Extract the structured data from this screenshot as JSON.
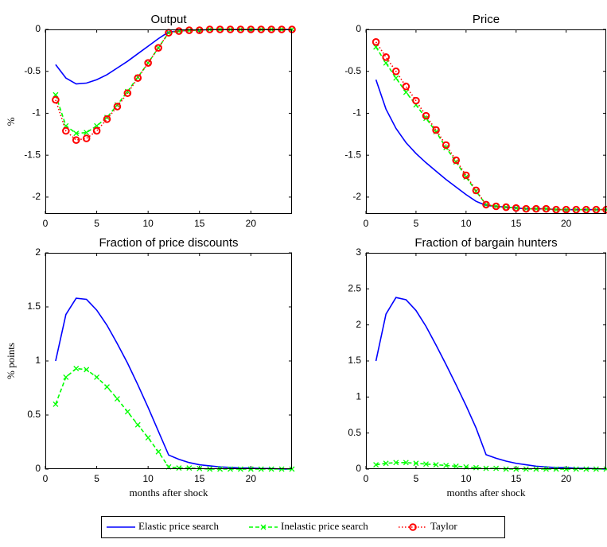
{
  "chart_data": [
    {
      "type": "line",
      "title": "Output",
      "ylabel": "%",
      "x": [
        1,
        2,
        3,
        4,
        5,
        6,
        7,
        8,
        9,
        10,
        11,
        12,
        13,
        14,
        15,
        16,
        17,
        18,
        19,
        20,
        21,
        22,
        23,
        24
      ],
      "xlim": [
        0,
        24
      ],
      "xticks": [
        0,
        5,
        10,
        15,
        20
      ],
      "ylim": [
        -2.2,
        0
      ],
      "yticks": [
        -2,
        -1.5,
        -1,
        -0.5,
        0
      ],
      "series": [
        {
          "name": "Elastic price search",
          "color": "#0000ff",
          "style": "solid",
          "marker": "none",
          "values": [
            -0.42,
            -0.58,
            -0.65,
            -0.64,
            -0.6,
            -0.54,
            -0.46,
            -0.38,
            -0.29,
            -0.2,
            -0.11,
            -0.03,
            -0.02,
            -0.01,
            -0.01,
            0,
            0,
            0,
            0,
            0,
            0,
            0,
            0,
            0
          ]
        },
        {
          "name": "Inelastic price search",
          "color": "#00ff00",
          "style": "dashed",
          "marker": "x",
          "values": [
            -0.78,
            -1.15,
            -1.24,
            -1.23,
            -1.15,
            -1.05,
            -0.9,
            -0.74,
            -0.57,
            -0.4,
            -0.22,
            -0.04,
            -0.02,
            -0.01,
            -0.01,
            0,
            0,
            0,
            0,
            0,
            0,
            0,
            0,
            0
          ]
        },
        {
          "name": "Taylor",
          "color": "#ff0000",
          "style": "dotted",
          "marker": "o",
          "values": [
            -0.84,
            -1.21,
            -1.32,
            -1.3,
            -1.21,
            -1.07,
            -0.92,
            -0.76,
            -0.58,
            -0.4,
            -0.22,
            -0.04,
            -0.02,
            -0.01,
            -0.01,
            0,
            0,
            0,
            0,
            0,
            0,
            0,
            0,
            0
          ]
        }
      ]
    },
    {
      "type": "line",
      "title": "Price",
      "x": [
        1,
        2,
        3,
        4,
        5,
        6,
        7,
        8,
        9,
        10,
        11,
        12,
        13,
        14,
        15,
        16,
        17,
        18,
        19,
        20,
        21,
        22,
        23,
        24
      ],
      "xlim": [
        0,
        24
      ],
      "xticks": [
        0,
        5,
        10,
        15,
        20
      ],
      "ylim": [
        -2.2,
        0
      ],
      "yticks": [
        -2,
        -1.5,
        -1,
        -0.5,
        0
      ],
      "series": [
        {
          "color": "#0000ff",
          "style": "solid",
          "marker": "none",
          "values": [
            -0.6,
            -0.95,
            -1.18,
            -1.35,
            -1.48,
            -1.59,
            -1.69,
            -1.79,
            -1.88,
            -1.97,
            -2.05,
            -2.1,
            -2.11,
            -2.12,
            -2.13,
            -2.14,
            -2.14,
            -2.14,
            -2.15,
            -2.15,
            -2.15,
            -2.15,
            -2.15,
            -2.15
          ]
        },
        {
          "color": "#00ff00",
          "style": "dashed",
          "marker": "x",
          "values": [
            -0.21,
            -0.4,
            -0.58,
            -0.75,
            -0.9,
            -1.06,
            -1.22,
            -1.41,
            -1.58,
            -1.76,
            -1.93,
            -2.09,
            -2.11,
            -2.12,
            -2.13,
            -2.14,
            -2.14,
            -2.14,
            -2.15,
            -2.15,
            -2.15,
            -2.15,
            -2.15,
            -2.15
          ]
        },
        {
          "color": "#ff0000",
          "style": "dotted",
          "marker": "o",
          "values": [
            -0.15,
            -0.33,
            -0.5,
            -0.68,
            -0.85,
            -1.03,
            -1.2,
            -1.38,
            -1.56,
            -1.74,
            -1.92,
            -2.09,
            -2.11,
            -2.12,
            -2.13,
            -2.14,
            -2.14,
            -2.14,
            -2.15,
            -2.15,
            -2.15,
            -2.15,
            -2.15,
            -2.15
          ]
        }
      ]
    },
    {
      "type": "line",
      "title": "Fraction of price discounts",
      "ylabel": "% points",
      "xlabel": "months after shock",
      "x": [
        1,
        2,
        3,
        4,
        5,
        6,
        7,
        8,
        9,
        10,
        11,
        12,
        13,
        14,
        15,
        16,
        17,
        18,
        19,
        20,
        21,
        22,
        23,
        24
      ],
      "xlim": [
        0,
        24
      ],
      "xticks": [
        0,
        5,
        10,
        15,
        20
      ],
      "ylim": [
        0,
        2
      ],
      "yticks": [
        0,
        0.5,
        1,
        1.5,
        2
      ],
      "series": [
        {
          "color": "#0000ff",
          "style": "solid",
          "marker": "none",
          "values": [
            1.0,
            1.43,
            1.58,
            1.57,
            1.47,
            1.33,
            1.16,
            0.98,
            0.78,
            0.57,
            0.35,
            0.13,
            0.09,
            0.06,
            0.04,
            0.03,
            0.02,
            0.015,
            0.01,
            0.01,
            0.005,
            0.005,
            0,
            0
          ]
        },
        {
          "color": "#00ff00",
          "style": "dashed",
          "marker": "x",
          "values": [
            0.6,
            0.85,
            0.93,
            0.92,
            0.85,
            0.76,
            0.65,
            0.53,
            0.41,
            0.29,
            0.16,
            0.02,
            0.01,
            0.01,
            0.005,
            0,
            0,
            0,
            0,
            0,
            0,
            0,
            0,
            0
          ]
        }
      ]
    },
    {
      "type": "line",
      "title": "Fraction of bargain hunters",
      "xlabel": "months after shock",
      "x": [
        1,
        2,
        3,
        4,
        5,
        6,
        7,
        8,
        9,
        10,
        11,
        12,
        13,
        14,
        15,
        16,
        17,
        18,
        19,
        20,
        21,
        22,
        23,
        24
      ],
      "xlim": [
        0,
        24
      ],
      "xticks": [
        0,
        5,
        10,
        15,
        20
      ],
      "ylim": [
        0,
        3
      ],
      "yticks": [
        0,
        0.5,
        1,
        1.5,
        2,
        2.5,
        3
      ],
      "series": [
        {
          "color": "#0000ff",
          "style": "solid",
          "marker": "none",
          "values": [
            1.5,
            2.15,
            2.38,
            2.35,
            2.2,
            1.98,
            1.72,
            1.45,
            1.17,
            0.88,
            0.57,
            0.2,
            0.15,
            0.11,
            0.08,
            0.06,
            0.04,
            0.03,
            0.02,
            0.02,
            0.01,
            0.01,
            0.005,
            0
          ]
        },
        {
          "color": "#00ff00",
          "style": "dashed",
          "marker": "x",
          "values": [
            0.06,
            0.08,
            0.09,
            0.09,
            0.08,
            0.07,
            0.06,
            0.05,
            0.04,
            0.03,
            0.02,
            0.01,
            0.01,
            0,
            0,
            0,
            0,
            0,
            0,
            0,
            0,
            0,
            0,
            0
          ]
        }
      ]
    }
  ]
}
